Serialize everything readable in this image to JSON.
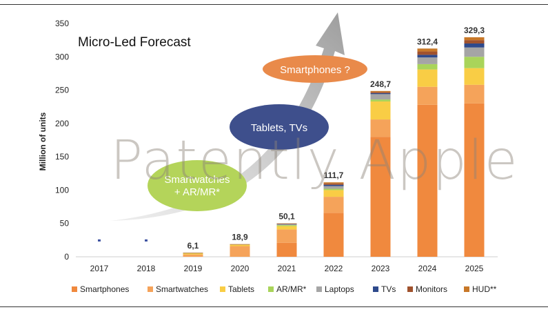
{
  "chart_data": {
    "type": "bar",
    "stacked": true,
    "title": "Micro-Led Forecast",
    "ylabel": "Million of units",
    "xlabel": "",
    "ylim": [
      0,
      350
    ],
    "yticks": [
      0,
      50,
      100,
      150,
      200,
      250,
      300,
      350
    ],
    "grid": false,
    "legend_position": "bottom",
    "categories": [
      "2017",
      "2018",
      "2019",
      "2020",
      "2021",
      "2022",
      "2023",
      "2024",
      "2025"
    ],
    "totals": [
      null,
      null,
      6.1,
      18.9,
      50.1,
      111.7,
      248.7,
      312.4,
      329.3
    ],
    "total_labels": [
      "",
      "",
      "6,1",
      "18,9",
      "50,1",
      "111,7",
      "248,7",
      "312,4",
      "329,3"
    ],
    "series": [
      {
        "name": "Smartphones",
        "color": "#F0893E",
        "values": [
          0,
          0,
          0,
          0,
          21,
          66,
          180,
          228,
          230
        ]
      },
      {
        "name": "Smartwatches",
        "color": "#F5A35A",
        "values": [
          0,
          0,
          3.5,
          16,
          20,
          24,
          26,
          27,
          28
        ]
      },
      {
        "name": "Tablets",
        "color": "#F9CD45",
        "values": [
          0,
          0,
          1.5,
          2,
          5,
          10,
          27,
          26,
          25
        ]
      },
      {
        "name": "AR/MR*",
        "color": "#A9D45A",
        "values": [
          0,
          0,
          0.6,
          0.5,
          1.5,
          2,
          3,
          8,
          17
        ]
      },
      {
        "name": "Laptops",
        "color": "#A5A5A5",
        "values": [
          0,
          0,
          0.3,
          0.2,
          1,
          4,
          8,
          10,
          14
        ]
      },
      {
        "name": "TVs",
        "color": "#2E4A8C",
        "values": [
          0,
          0,
          0,
          0,
          0.6,
          2,
          1.5,
          4,
          6
        ]
      },
      {
        "name": "Monitors",
        "color": "#A0522D",
        "values": [
          0,
          0,
          0.1,
          0.1,
          0.5,
          2,
          1.7,
          5,
          5
        ]
      },
      {
        "name": "HUD**",
        "color": "#C87828",
        "values": [
          0,
          0,
          0.1,
          0.1,
          0.5,
          1.7,
          1.5,
          4.4,
          4.3
        ]
      }
    ],
    "markers": [
      {
        "category": "2017",
        "value": 24,
        "color": "#3A4FA0"
      },
      {
        "category": "2018",
        "value": 24,
        "color": "#3A4FA0"
      }
    ]
  },
  "annotations": {
    "smartphones": "Smartphones ?",
    "tablets_tvs": "Tablets, TVs",
    "smartwatches_line1": "Smartwatches",
    "smartwatches_line2": "+ AR/MR*"
  },
  "watermark": "Patently Apple",
  "colors": {
    "arrow": "#9A9A9A",
    "bubble_smartphones": "#E98A4A",
    "bubble_tablets_tvs": "#3E4F8C",
    "bubble_smartwatches": "#B4D45A"
  }
}
